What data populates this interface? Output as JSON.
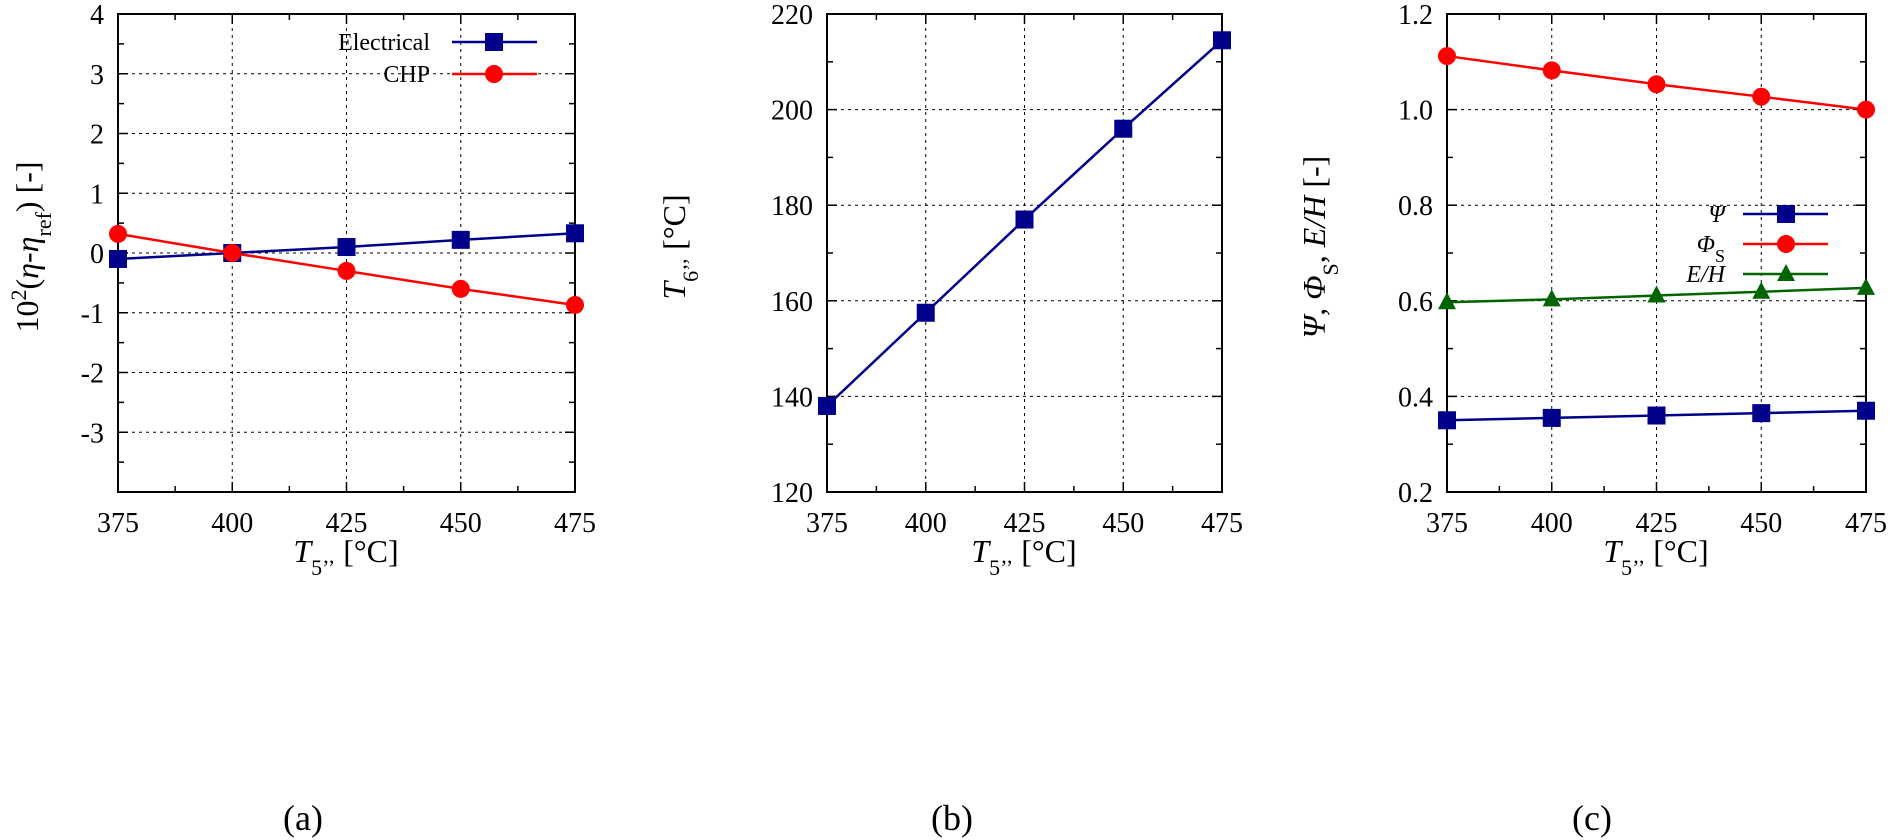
{
  "chart_data": [
    {
      "type": "line",
      "panel": "(a)",
      "x": [
        375,
        400,
        425,
        450,
        475
      ],
      "xlim": [
        375,
        475
      ],
      "xticks": [
        "375",
        "400",
        "425",
        "450",
        "475"
      ],
      "ylim": [
        -4,
        4
      ],
      "yticks": [
        "",
        "-3",
        "-2",
        "-1",
        "0",
        "1",
        "2",
        "3",
        "4"
      ],
      "xlabel_prefix": "T",
      "xlabel_sub": "5’’",
      "xlabel_suffix": " [°C]",
      "ylabel_pre": "10",
      "ylabel_sup": "2",
      "ylabel_mid1": "(",
      "ylabel_eta": "η",
      "ylabel_mid2": "-",
      "ylabel_eta2": "η",
      "ylabel_sub": "ref",
      "ylabel_post": ") [-]",
      "grid": true,
      "legend_position": "top-right",
      "series": [
        {
          "name": "Electrical",
          "marker": "square",
          "color": "#00008b",
          "values": [
            -0.1,
            0.0,
            0.1,
            0.22,
            0.33
          ]
        },
        {
          "name": "CHP",
          "marker": "circle",
          "color": "#ff0000",
          "values": [
            0.32,
            0.0,
            -0.3,
            -0.6,
            -0.87
          ]
        }
      ]
    },
    {
      "type": "line",
      "panel": "(b)",
      "x": [
        375,
        400,
        425,
        450,
        475
      ],
      "xlim": [
        375,
        475
      ],
      "xticks": [
        "375",
        "400",
        "425",
        "450",
        "475"
      ],
      "ylim": [
        120,
        220
      ],
      "yticks": [
        "120",
        "140",
        "160",
        "180",
        "200",
        "220"
      ],
      "xlabel_prefix": "T",
      "xlabel_sub": "5’’",
      "xlabel_suffix": " [°C]",
      "ylabel_prefix": "T",
      "ylabel_sub": "6’’",
      "ylabel_suffix": " [°C]",
      "grid": true,
      "series": [
        {
          "marker": "square",
          "color": "#00008b",
          "values": [
            138,
            157.5,
            177,
            196,
            214.5
          ]
        }
      ]
    },
    {
      "type": "line",
      "panel": "(c)",
      "x": [
        375,
        400,
        425,
        450,
        475
      ],
      "xlim": [
        375,
        475
      ],
      "xticks": [
        "375",
        "400",
        "425",
        "450",
        "475"
      ],
      "ylim": [
        0.2,
        1.2
      ],
      "yticks": [
        "0.2",
        "0.4",
        "0.6",
        "0.8",
        "1.0",
        "1.2"
      ],
      "xlabel_prefix": "T",
      "xlabel_sub": "5’’",
      "xlabel_suffix": " [°C]",
      "ylabel_a": "Ψ, Φ",
      "ylabel_a_sub": "S",
      "ylabel_b": ", ",
      "ylabel_c": "E/H",
      "ylabel_d": " [-]",
      "grid": true,
      "legend_position": "center-right",
      "series": [
        {
          "name": "Ψ",
          "marker": "square",
          "color": "#00008b",
          "values": [
            0.35,
            0.355,
            0.36,
            0.365,
            0.37
          ]
        },
        {
          "name": "Φ",
          "name_sub": "S",
          "marker": "circle",
          "color": "#ff0000",
          "values": [
            1.112,
            1.082,
            1.053,
            1.027,
            1.0
          ]
        },
        {
          "name": "E/H",
          "marker": "triangle",
          "color": "#006400",
          "values": [
            0.597,
            0.603,
            0.611,
            0.619,
            0.627
          ]
        }
      ]
    }
  ]
}
